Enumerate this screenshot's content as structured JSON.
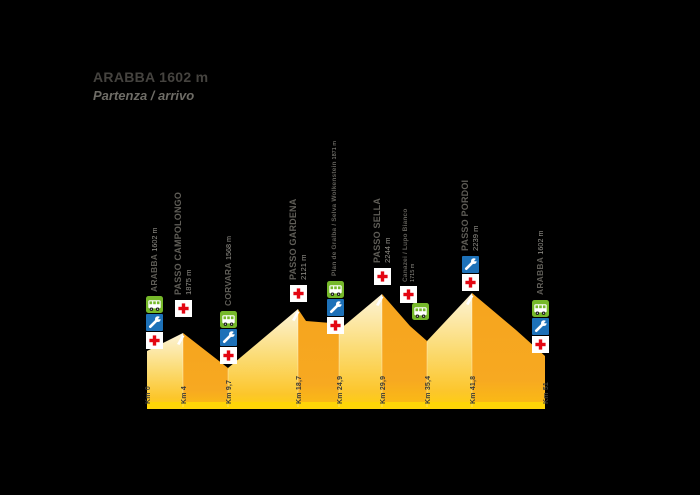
{
  "title": {
    "heading": "ARABBA 1602 m",
    "subheading": "Partenza / arrivo"
  },
  "chart_data": {
    "type": "area",
    "title": "ARABBA 1602 m",
    "subtitle": "Partenza / arrivo",
    "x_unit": "km",
    "y_unit": "m",
    "points": [
      {
        "km": 0,
        "label": "ARABBA",
        "elevation_m": 1602,
        "elevation_label": "1602 m",
        "km_label": "Km 0",
        "services": [
          "bus",
          "mechanic",
          "first-aid"
        ]
      },
      {
        "km": 4,
        "label": "PASSO CAMPOLONGO",
        "elevation_m": 1875,
        "elevation_label": "1875 m",
        "km_label": "Km 4",
        "services": [
          "first-aid"
        ]
      },
      {
        "km": 9.7,
        "label": "CORVARA",
        "elevation_m": 1568,
        "elevation_label": "1568 m",
        "km_label": "Km 9,7",
        "services": [
          "bus",
          "mechanic",
          "first-aid"
        ]
      },
      {
        "km": 18.7,
        "label": "PASSO GARDENA",
        "elevation_m": 2121,
        "elevation_label": "2121 m",
        "km_label": "Km 18,7",
        "services": [
          "first-aid"
        ]
      },
      {
        "km": 24.9,
        "label": "Plan de Gralba / Selva Wolkenstein",
        "elevation_m": 1871,
        "elevation_label": "1871 m",
        "km_label": "Km 24,9",
        "services": [
          "bus",
          "mechanic",
          "first-aid"
        ]
      },
      {
        "km": 29.9,
        "label": "PASSO SELLA",
        "elevation_m": 2244,
        "elevation_label": "2244 m",
        "km_label": "Km 29,9",
        "services": [
          "first-aid"
        ]
      },
      {
        "km": 35.4,
        "label": "Canazei / Lupo Bianco",
        "elevation_m": 1715,
        "elevation_label": "1715 m",
        "km_label": "Km 35,4",
        "services": [
          "first-aid",
          "bus"
        ]
      },
      {
        "km": 41.8,
        "label": "PASSO PORDOI",
        "elevation_m": 2239,
        "elevation_label": "2239 m",
        "km_label": "Km 41,8",
        "services": [
          "mechanic",
          "first-aid"
        ]
      },
      {
        "km": 51,
        "label": "ARABBA",
        "elevation_m": 1602,
        "elevation_label": "1602 m",
        "km_label": "Km 51",
        "services": [
          "bus",
          "mechanic",
          "first-aid"
        ]
      }
    ],
    "colors": {
      "background": "#000000",
      "climb_top": "#FDF4D8",
      "climb_bottom": "#FFD10A",
      "descent": "#F6A41E",
      "base_strip": "#FFD507",
      "bus": "#76B82A",
      "mechanic": "#1D71B8",
      "first_aid": "#E30613"
    },
    "legend_icons": [
      "bus",
      "mechanic",
      "first-aid"
    ],
    "grid": false
  }
}
